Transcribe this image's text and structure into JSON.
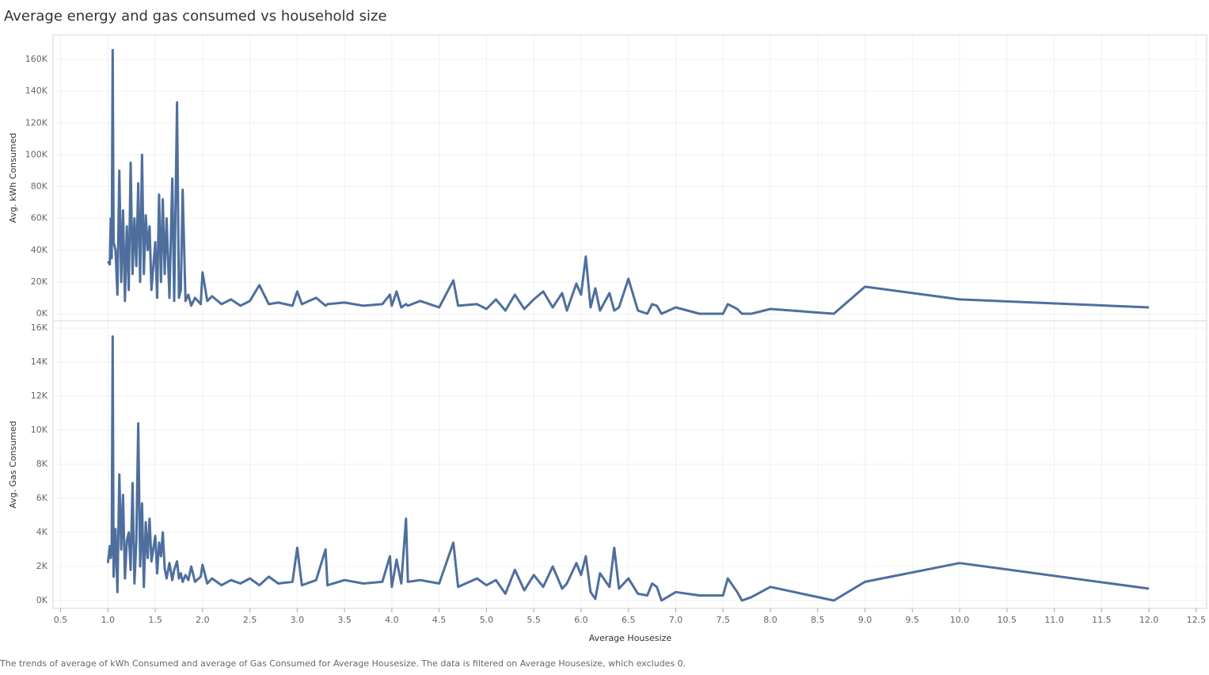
{
  "chart_data": {
    "type": "line",
    "title": "Average energy and gas consumed vs household size",
    "xlabel": "Average Housesize",
    "caption": "The trends of average of kWh Consumed and average of Gas Consumed for Average Housesize. The data is filtered on Average Housesize, which excludes 0.",
    "xlim": [
      0.42,
      12.61
    ],
    "xticks": [
      0.5,
      {
        "value": 1,
        "label": "1.0"
      },
      1.5,
      {
        "value": 2,
        "label": "2.0"
      },
      2.5,
      {
        "value": 3,
        "label": "3.0"
      },
      3.5,
      {
        "value": 4,
        "label": "4.0"
      },
      4.5,
      {
        "value": 5,
        "label": "5.0"
      },
      5.5,
      {
        "value": 6,
        "label": "6.0"
      },
      6.5,
      {
        "value": 7,
        "label": "7.0"
      },
      7.5,
      {
        "value": 8,
        "label": "8.0"
      },
      8.5,
      {
        "value": 9,
        "label": "9.0"
      },
      9.5,
      {
        "value": 10,
        "label": "10.0"
      },
      10.5,
      {
        "value": 11,
        "label": "11.0"
      },
      11.5,
      {
        "value": 12,
        "label": "12.0"
      },
      12.5
    ],
    "grid": true,
    "x": [
      1.0,
      1.02,
      1.03,
      1.04,
      1.05,
      1.06,
      1.08,
      1.1,
      1.12,
      1.14,
      1.16,
      1.18,
      1.2,
      1.22,
      1.24,
      1.26,
      1.28,
      1.3,
      1.32,
      1.34,
      1.36,
      1.38,
      1.4,
      1.42,
      1.44,
      1.46,
      1.5,
      1.52,
      1.54,
      1.56,
      1.58,
      1.6,
      1.62,
      1.65,
      1.68,
      1.7,
      1.73,
      1.75,
      1.77,
      1.79,
      1.82,
      1.85,
      1.88,
      1.92,
      1.98,
      2.0,
      2.05,
      2.1,
      2.2,
      2.3,
      2.4,
      2.5,
      2.6,
      2.7,
      2.8,
      2.95,
      3.0,
      3.05,
      3.2,
      3.3,
      3.32,
      3.5,
      3.7,
      3.9,
      3.98,
      4.0,
      4.05,
      4.1,
      4.15,
      4.17,
      4.3,
      4.5,
      4.65,
      4.7,
      4.9,
      5.0,
      5.1,
      5.2,
      5.3,
      5.4,
      5.5,
      5.6,
      5.7,
      5.8,
      5.85,
      5.95,
      6.0,
      6.05,
      6.1,
      6.15,
      6.2,
      6.3,
      6.35,
      6.4,
      6.5,
      6.6,
      6.7,
      6.75,
      6.8,
      6.85,
      7.0,
      7.25,
      7.5,
      7.55,
      7.65,
      7.7,
      7.8,
      8.0,
      8.67,
      9.0,
      10.0,
      12.0
    ],
    "panels": [
      {
        "ylabel": "Avg. kWh Consumed",
        "color": "#4e6f9e",
        "ylim": [
          -4500,
          175500
        ],
        "yticks": [
          {
            "value": 0,
            "label": "0K"
          },
          {
            "value": 20000,
            "label": "20K"
          },
          {
            "value": 40000,
            "label": "40K"
          },
          {
            "value": 60000,
            "label": "60K"
          },
          {
            "value": 80000,
            "label": "80K"
          },
          {
            "value": 100000,
            "label": "100K"
          },
          {
            "value": 120000,
            "label": "120K"
          },
          {
            "value": 140000,
            "label": "140K"
          },
          {
            "value": 160000,
            "label": "160K"
          }
        ],
        "values": [
          33000,
          31000,
          60000,
          35000,
          166000,
          45000,
          40000,
          12000,
          90000,
          20000,
          65000,
          8000,
          55000,
          15000,
          95000,
          25000,
          60000,
          30000,
          82000,
          20000,
          100000,
          25000,
          62000,
          40000,
          55000,
          15000,
          45000,
          10000,
          75000,
          20000,
          72000,
          25000,
          60000,
          10000,
          85000,
          8000,
          133000,
          10000,
          15000,
          78000,
          8000,
          12000,
          5000,
          10000,
          6000,
          26000,
          8000,
          11000,
          6000,
          9000,
          5000,
          8000,
          18000,
          6000,
          7000,
          5000,
          14000,
          6000,
          10000,
          5000,
          6000,
          7000,
          5000,
          6000,
          12000,
          5000,
          14000,
          4000,
          6000,
          5000,
          8000,
          4000,
          21000,
          5000,
          6000,
          3000,
          9000,
          2000,
          12000,
          3000,
          9000,
          14000,
          4000,
          13000,
          2000,
          19000,
          12000,
          36000,
          4000,
          16000,
          2000,
          13000,
          2000,
          4000,
          22000,
          2000,
          0,
          6000,
          5000,
          0,
          4000,
          0,
          0,
          6000,
          3000,
          0,
          0,
          3000,
          0,
          17000,
          9000,
          4000
        ]
      },
      {
        "ylabel": "Avg. Gas Consumed",
        "color": "#4e6f9e",
        "ylim": [
          -465,
          16420
        ],
        "yticks": [
          {
            "value": 0,
            "label": "0K"
          },
          {
            "value": 2000,
            "label": "2K"
          },
          {
            "value": 4000,
            "label": "4K"
          },
          {
            "value": 6000,
            "label": "6K"
          },
          {
            "value": 8000,
            "label": "8K"
          },
          {
            "value": 10000,
            "label": "10K"
          },
          {
            "value": 12000,
            "label": "12K"
          },
          {
            "value": 14000,
            "label": "14K"
          },
          {
            "value": 16000,
            "label": "16K"
          }
        ],
        "values": [
          2200,
          3200,
          2500,
          3000,
          15500,
          1400,
          4200,
          500,
          7400,
          3000,
          6200,
          1300,
          3500,
          4000,
          1800,
          6900,
          1000,
          3500,
          10400,
          2000,
          5700,
          800,
          4600,
          2500,
          4800,
          2300,
          3800,
          1600,
          3400,
          2600,
          4000,
          1900,
          1300,
          2200,
          1200,
          1800,
          2300,
          1300,
          1600,
          1100,
          1500,
          1200,
          2000,
          1100,
          1400,
          2100,
          1000,
          1300,
          900,
          1200,
          1000,
          1300,
          900,
          1400,
          1000,
          1100,
          3100,
          900,
          1200,
          3000,
          900,
          1200,
          1000,
          1100,
          2600,
          800,
          2400,
          1000,
          4800,
          1100,
          1200,
          1000,
          3400,
          800,
          1300,
          900,
          1200,
          400,
          1800,
          600,
          1500,
          800,
          2000,
          700,
          1000,
          2200,
          1500,
          2600,
          500,
          100,
          1600,
          800,
          3100,
          700,
          1300,
          400,
          300,
          1000,
          800,
          0,
          500,
          300,
          300,
          1300,
          500,
          0,
          200,
          800,
          0,
          1100,
          2200,
          700
        ]
      }
    ]
  }
}
